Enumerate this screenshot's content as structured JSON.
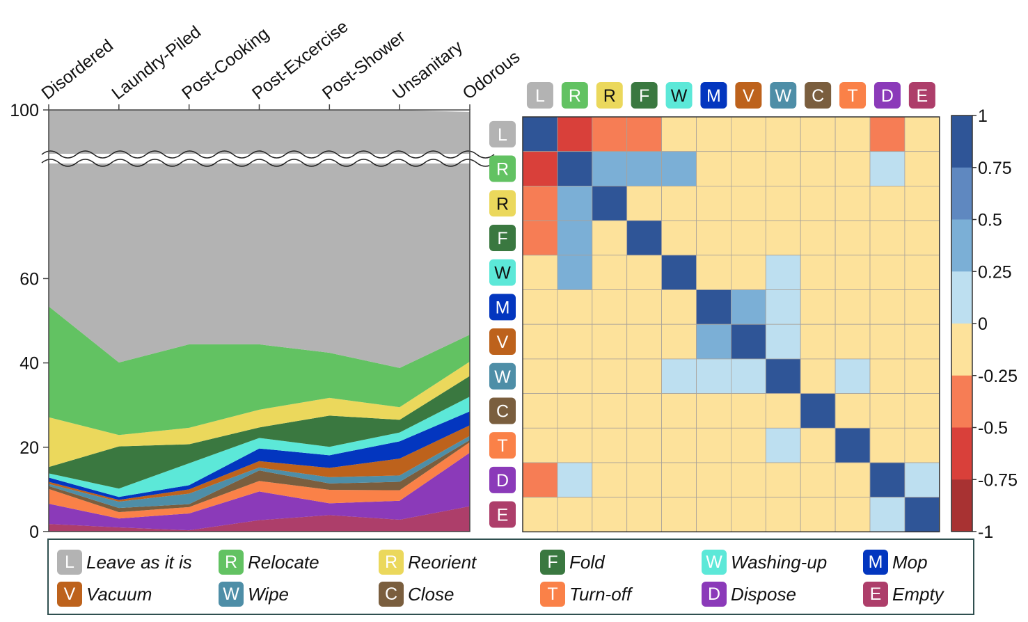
{
  "chart_data": [
    {
      "type": "area",
      "stacked": true,
      "categories": [
        "Disordered",
        "Laundry-Piled",
        "Post-Cooking",
        "Post-Excercise",
        "Post-Shower",
        "Unsanitary",
        "Odorous"
      ],
      "ylim": [
        0,
        100
      ],
      "y_ticks": [
        "0",
        "20",
        "40",
        "60",
        "100"
      ],
      "axis_break": true,
      "series": [
        {
          "code": "E",
          "name": "Empty",
          "values": [
            1.8,
            1.0,
            0.3,
            2.7,
            3.9,
            2.8,
            6.0
          ]
        },
        {
          "code": "D",
          "name": "Dispose",
          "values": [
            4.8,
            2.1,
            4.0,
            6.8,
            2.8,
            4.5,
            12.7
          ]
        },
        {
          "code": "T",
          "name": "Turn-off",
          "values": [
            3.5,
            1.5,
            1.5,
            2.5,
            3.2,
            2.5,
            2.5
          ]
        },
        {
          "code": "C",
          "name": "Close",
          "values": [
            0.7,
            1.0,
            0.7,
            2.5,
            1.5,
            2.0,
            0.5
          ]
        },
        {
          "code": "W",
          "name": "Wipe",
          "values": [
            0.5,
            1.5,
            2.5,
            0.7,
            1.5,
            1.5,
            1.0
          ]
        },
        {
          "code": "V",
          "name": "Vacuum",
          "values": [
            0.5,
            0.4,
            1.0,
            1.5,
            2.2,
            4.0,
            2.5
          ]
        },
        {
          "code": "M",
          "name": "Mop",
          "values": [
            1.0,
            0.7,
            1.0,
            3.0,
            3.0,
            4.1,
            3.3
          ]
        },
        {
          "code": "W",
          "name": "Washing-up",
          "values": [
            1.0,
            2.0,
            5.2,
            2.5,
            2.0,
            2.1,
            3.5
          ]
        },
        {
          "code": "F",
          "name": "Fold",
          "values": [
            1.5,
            10.0,
            4.5,
            2.5,
            7.4,
            3.0,
            4.9
          ]
        },
        {
          "code": "R",
          "name": "Reorient",
          "values": [
            11.8,
            2.7,
            3.9,
            4.2,
            4.2,
            3.0,
            3.4
          ]
        },
        {
          "code": "R",
          "name": "Relocate",
          "values": [
            26.3,
            17.2,
            19.8,
            15.5,
            10.7,
            9.3,
            6.4
          ]
        },
        {
          "code": "L",
          "name": "Leave as it is",
          "values": [
            46.6,
            59.9,
            55.6,
            55.6,
            57.6,
            61.2,
            52.8
          ]
        }
      ]
    },
    {
      "type": "heatmap",
      "row_labels": [
        "L",
        "R",
        "R",
        "F",
        "W",
        "M",
        "V",
        "W",
        "C",
        "T",
        "D",
        "E"
      ],
      "col_labels": [
        "L",
        "R",
        "R",
        "F",
        "W",
        "M",
        "V",
        "W",
        "C",
        "T",
        "D",
        "E"
      ],
      "values": [
        [
          1,
          -0.6,
          -0.4,
          -0.4,
          0,
          0,
          0,
          0,
          0,
          0,
          -0.4,
          0
        ],
        [
          -0.6,
          1,
          0.4,
          0.4,
          0.4,
          0,
          0,
          0,
          0,
          0,
          0.15,
          0
        ],
        [
          -0.4,
          0.4,
          1,
          0,
          0,
          0,
          0,
          0,
          0,
          0,
          0,
          0
        ],
        [
          -0.4,
          0.4,
          0,
          1,
          0,
          0,
          0,
          0,
          0,
          0,
          0,
          0
        ],
        [
          0,
          0.4,
          0,
          0,
          1,
          0,
          0,
          0.15,
          0,
          0,
          0,
          0
        ],
        [
          0,
          0,
          0,
          0,
          0,
          1,
          0.4,
          0.15,
          0,
          0,
          0,
          0
        ],
        [
          0,
          0,
          0,
          0,
          0,
          0.4,
          1,
          0.15,
          0,
          0,
          0,
          0
        ],
        [
          0,
          0,
          0,
          0,
          0.15,
          0.15,
          0.15,
          1,
          0,
          0.15,
          0,
          0
        ],
        [
          0,
          0,
          0,
          0,
          0,
          0,
          0,
          0,
          1,
          0,
          0,
          0
        ],
        [
          0,
          0,
          0,
          0,
          0,
          0,
          0,
          0.15,
          0,
          1,
          0,
          0
        ],
        [
          -0.4,
          0.15,
          0,
          0,
          0,
          0,
          0,
          0,
          0,
          0,
          1,
          0.15
        ],
        [
          0,
          0,
          0,
          0,
          0,
          0,
          0,
          0,
          0,
          0,
          0.15,
          1
        ]
      ],
      "colorbar": {
        "range": [
          -1,
          1
        ],
        "ticks": [
          "1",
          "0.75",
          "0.5",
          "0.25",
          "0",
          "-0.25",
          "-0.5",
          "-0.75",
          "-1"
        ]
      }
    }
  ],
  "legend": [
    {
      "code": "L",
      "label": "Leave as it is",
      "color": "#b3b3b3"
    },
    {
      "code": "R",
      "label": "Relocate",
      "color": "#62c262"
    },
    {
      "code": "R",
      "label": "Reorient",
      "color": "#ebd85c"
    },
    {
      "code": "F",
      "label": "Fold",
      "color": "#3a7840"
    },
    {
      "code": "W",
      "label": "Washing-up",
      "color": "#5ce8d8"
    },
    {
      "code": "M",
      "label": "Mop",
      "color": "#0336bf"
    },
    {
      "code": "V",
      "label": "Vacuum",
      "color": "#bd621c"
    },
    {
      "code": "W",
      "label": "Wipe",
      "color": "#4e8ea7"
    },
    {
      "code": "C",
      "label": "Close",
      "color": "#7a5e3e"
    },
    {
      "code": "T",
      "label": "Turn-off",
      "color": "#fa8148"
    },
    {
      "code": "D",
      "label": "Dispose",
      "color": "#8b3ab9"
    },
    {
      "code": "E",
      "label": "Empty",
      "color": "#ad3e6a"
    }
  ],
  "heatmap_palette": {
    "neg_strong": "#a83232",
    "neg_mid": "#d9403a",
    "neg_weak": "#f67d55",
    "zero": "#fde29b",
    "pos_weak": "#bddff0",
    "pos_mid": "#7bafd6",
    "pos_midstrong": "#5f88c0",
    "pos_strong": "#2f5597"
  }
}
